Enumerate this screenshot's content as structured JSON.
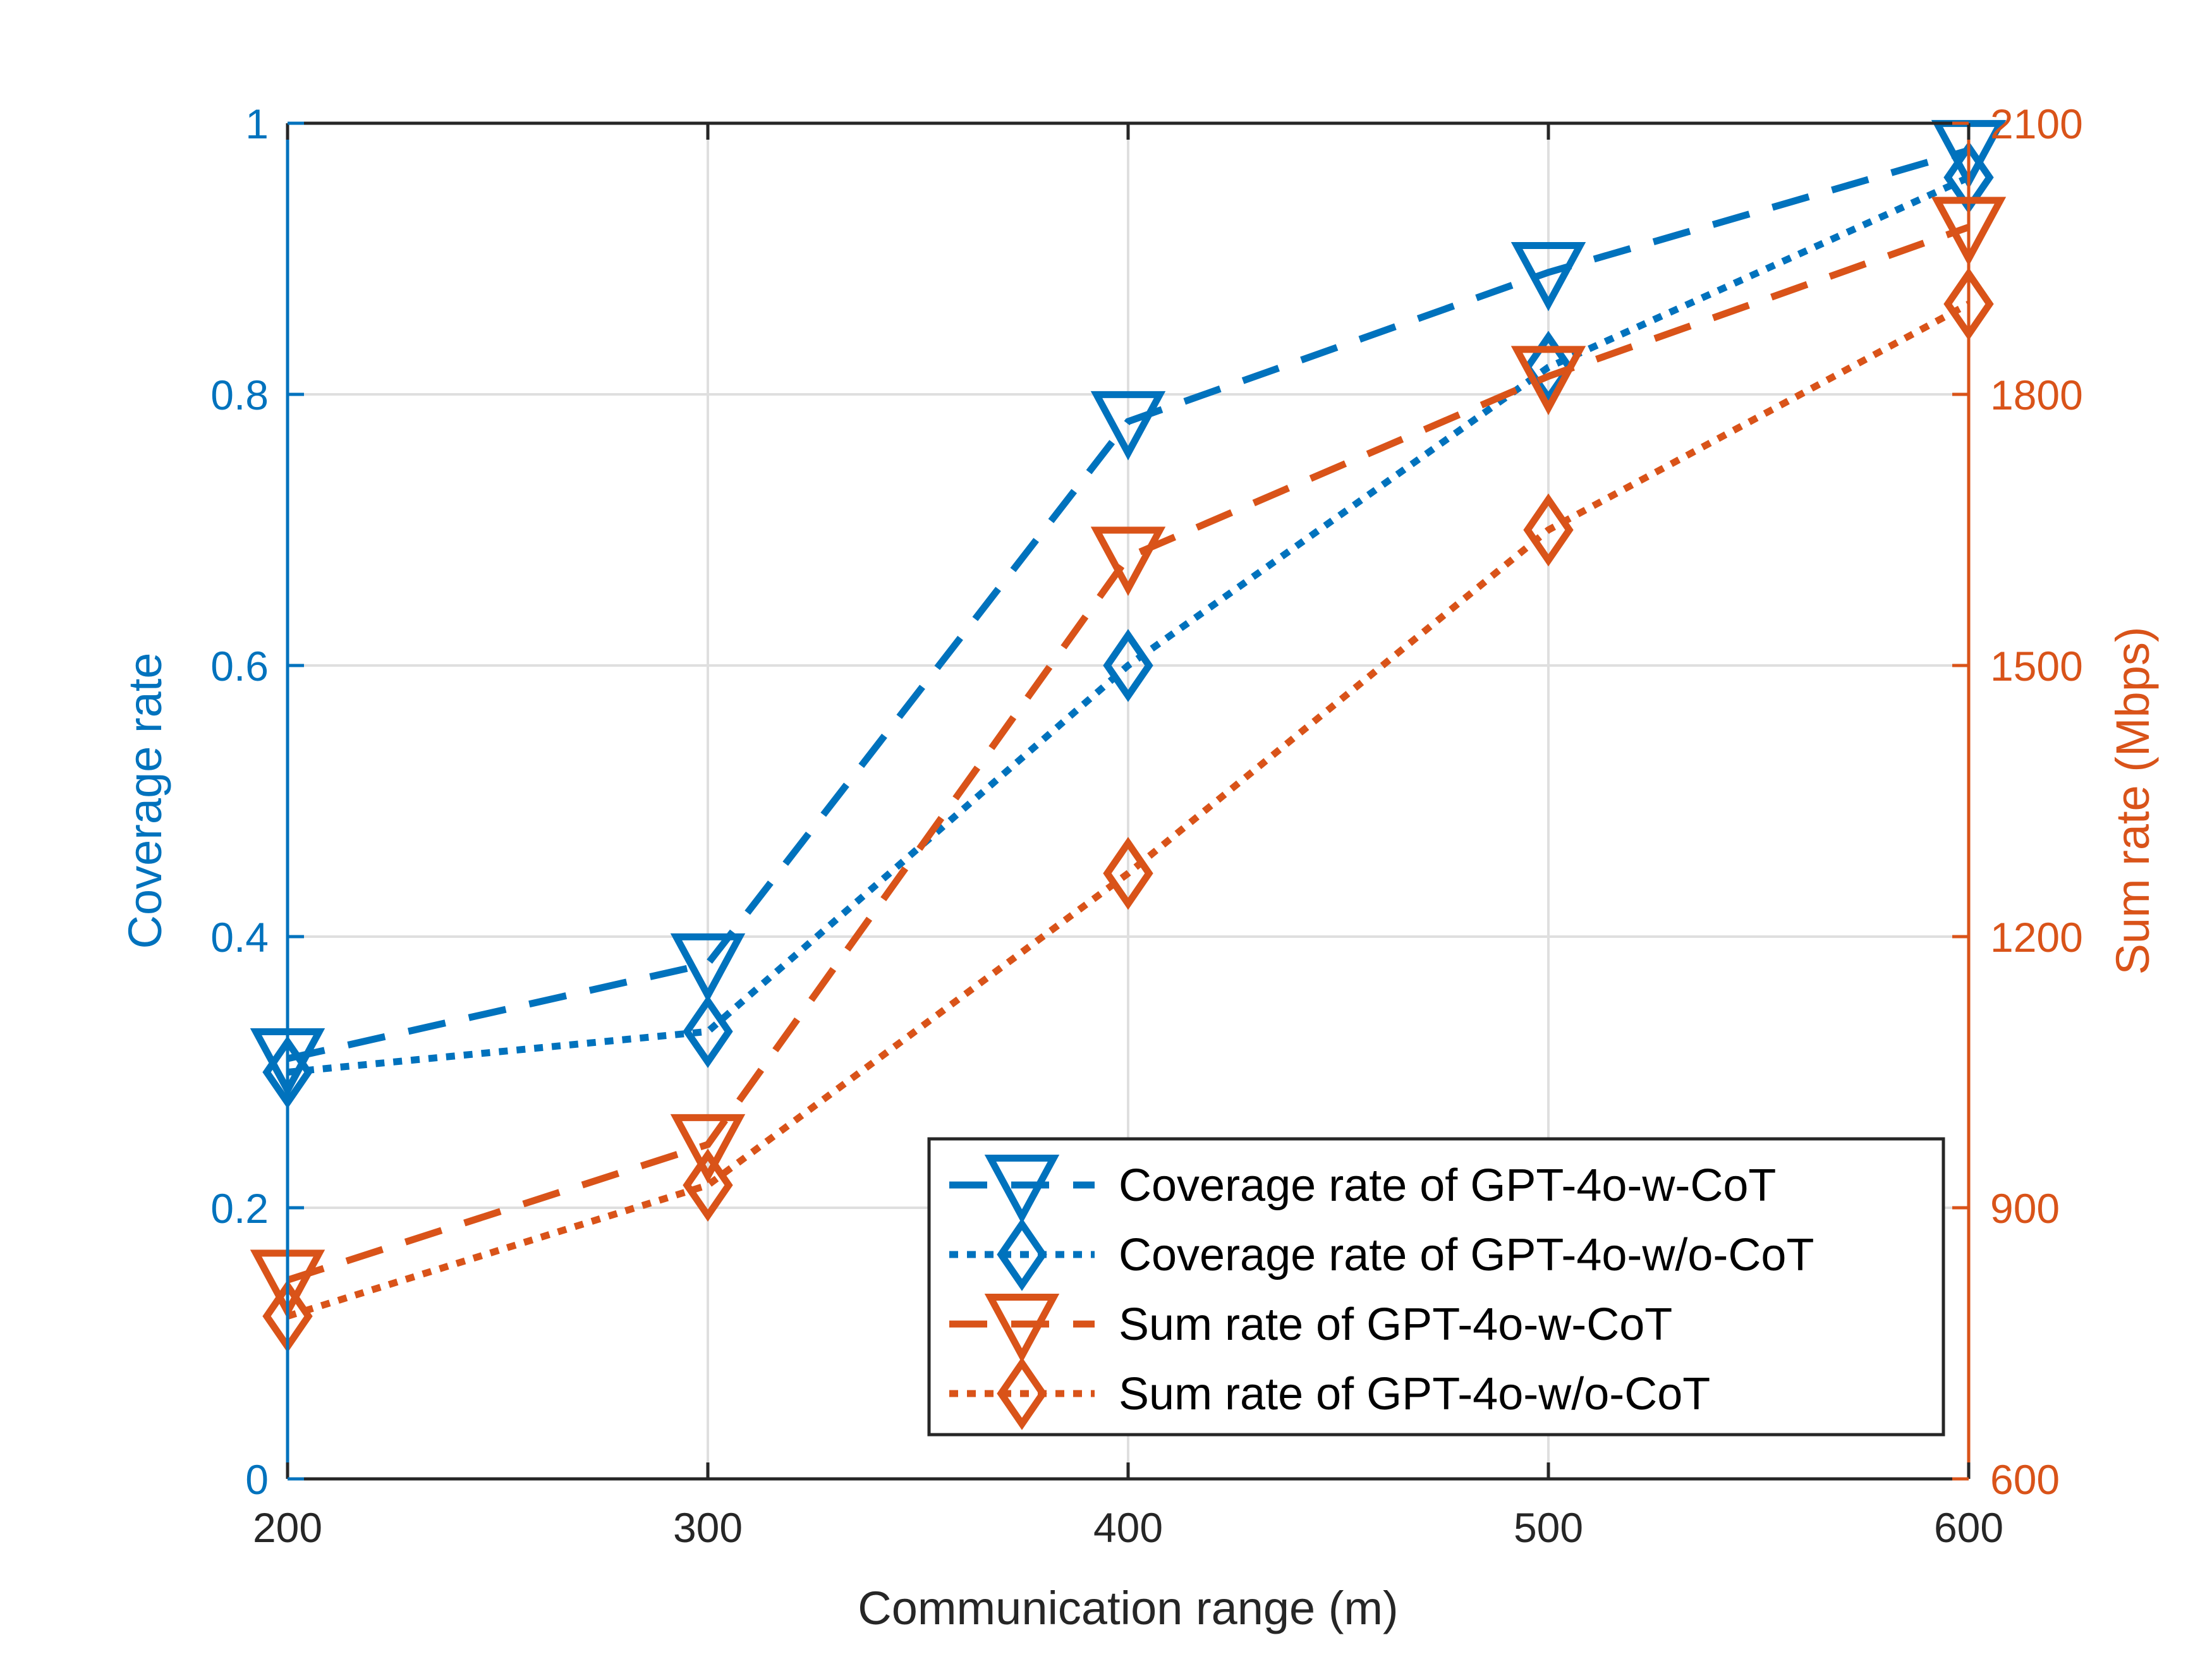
{
  "chart_data": {
    "type": "line",
    "title": "",
    "xlabel": "Communication range (m)",
    "ylabel_left": "Coverage rate",
    "ylabel_right": "Sum rate (Mbps)",
    "x": [
      200,
      300,
      400,
      500,
      600
    ],
    "x_ticks": [
      "200",
      "300",
      "400",
      "500",
      "600"
    ],
    "xlim": [
      200,
      600
    ],
    "ylim_left": [
      0,
      1
    ],
    "ylim_right": [
      600,
      2100
    ],
    "y_ticks_left": [
      "0",
      "0.2",
      "0.4",
      "0.6",
      "0.8",
      "1"
    ],
    "y_ticks_left_values": [
      0,
      0.2,
      0.4,
      0.6,
      0.8,
      1
    ],
    "y_ticks_right": [
      "600",
      "900",
      "1200",
      "1500",
      "1800",
      "2100"
    ],
    "y_ticks_right_values": [
      600,
      900,
      1200,
      1500,
      1800,
      2100
    ],
    "grid": true,
    "legend_position": "bottom-right",
    "colors": {
      "blue": "#0072BD",
      "orange": "#D95319",
      "axis": "#262626",
      "grid": "#dfdfdf"
    },
    "series": [
      {
        "name": "Coverage rate of GPT-4o-w-CoT",
        "axis": "left",
        "color": "#0072BD",
        "line": "dashed",
        "marker": "triangle-down",
        "values": [
          0.31,
          0.38,
          0.78,
          0.89,
          0.98
        ]
      },
      {
        "name": "Coverage rate of GPT-4o-w/o-CoT",
        "axis": "left",
        "color": "#0072BD",
        "line": "dotted",
        "marker": "diamond",
        "values": [
          0.3,
          0.33,
          0.6,
          0.82,
          0.96
        ]
      },
      {
        "name": "Sum rate of GPT-4o-w-CoT",
        "axis": "right",
        "color": "#D95319",
        "line": "dashed",
        "marker": "triangle-down",
        "values": [
          820,
          970,
          1620,
          1820,
          1985
        ]
      },
      {
        "name": "Sum rate of GPT-4o-w/o-CoT",
        "axis": "right",
        "color": "#D95319",
        "line": "dotted",
        "marker": "diamond",
        "values": [
          780,
          925,
          1270,
          1650,
          1900
        ]
      }
    ]
  }
}
